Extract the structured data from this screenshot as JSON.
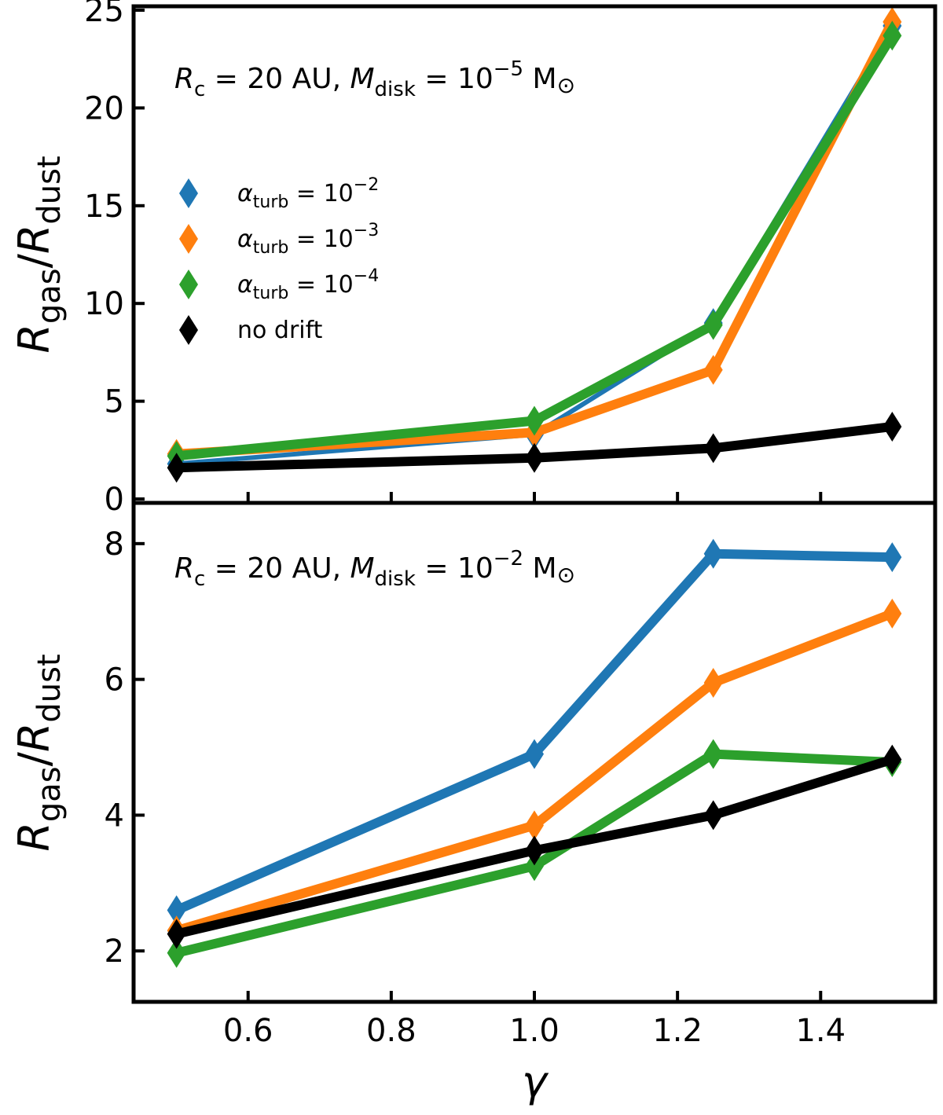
{
  "chart_data": [
    {
      "type": "line",
      "panel": "top",
      "annotation": {
        "r_sym": "R",
        "r_sub": "c",
        "r_rest": " = 20 AU, ",
        "m_sym": "M",
        "m_sub": "disk",
        "m_eq": " = 10",
        "m_exp": "−5",
        "m_unit": " M",
        "sun": "⊙"
      },
      "ylabel": {
        "r1": "R",
        "sub1": "gas",
        "slash": "/",
        "r2": "R",
        "sub2": "dust"
      },
      "x": [
        0.5,
        1.0,
        1.25,
        1.5
      ],
      "xlim": [
        0.44,
        1.56
      ],
      "ylim": [
        -0.2,
        25.2
      ],
      "yticks": [
        "0",
        "5",
        "10",
        "15",
        "20",
        "25"
      ],
      "ytick_values": [
        0,
        5,
        10,
        15,
        20,
        25
      ],
      "series": [
        {
          "name": "α_turb = 10^-2",
          "color": "#1f77b4",
          "values": [
            1.8,
            3.3,
            9.0,
            24.2
          ]
        },
        {
          "name": "α_turb = 10^-3",
          "color": "#ff7f0e",
          "values": [
            2.3,
            3.4,
            6.6,
            24.4
          ]
        },
        {
          "name": "α_turb = 10^-4",
          "color": "#2ca02c",
          "values": [
            2.2,
            4.0,
            8.9,
            23.7
          ]
        },
        {
          "name": "no drift",
          "color": "#000000",
          "values": [
            1.6,
            2.1,
            2.6,
            3.7
          ]
        }
      ]
    },
    {
      "type": "line",
      "panel": "bottom",
      "annotation": {
        "r_sym": "R",
        "r_sub": "c",
        "r_rest": " = 20 AU, ",
        "m_sym": "M",
        "m_sub": "disk",
        "m_eq": " = 10",
        "m_exp": "−2",
        "m_unit": " M",
        "sun": "⊙"
      },
      "ylabel": {
        "r1": "R",
        "sub1": "gas",
        "slash": "/",
        "r2": "R",
        "sub2": "dust"
      },
      "x": [
        0.5,
        1.0,
        1.25,
        1.5
      ],
      "xlim": [
        0.44,
        1.56
      ],
      "ylim": [
        1.25,
        8.6
      ],
      "xlabel": "γ",
      "xticks": [
        "0.6",
        "0.8",
        "1.0",
        "1.2",
        "1.4"
      ],
      "xtick_values": [
        0.6,
        0.8,
        1.0,
        1.2,
        1.4
      ],
      "yticks": [
        "2",
        "4",
        "6",
        "8"
      ],
      "ytick_values": [
        2,
        4,
        6,
        8
      ],
      "series": [
        {
          "name": "α_turb = 10^-2",
          "color": "#1f77b4",
          "values": [
            2.6,
            4.9,
            7.85,
            7.8
          ]
        },
        {
          "name": "α_turb = 10^-3",
          "color": "#ff7f0e",
          "values": [
            2.3,
            3.85,
            5.95,
            6.97
          ]
        },
        {
          "name": "α_turb = 10^-4",
          "color": "#2ca02c",
          "values": [
            1.97,
            3.25,
            4.9,
            4.78
          ]
        },
        {
          "name": "no drift",
          "color": "#000000",
          "values": [
            2.25,
            3.48,
            4.0,
            4.82
          ]
        }
      ]
    }
  ],
  "legend": {
    "items": [
      {
        "sym": "α",
        "sub": "turb",
        "eq": " = 10",
        "exp": "−2",
        "color": "#1f77b4"
      },
      {
        "sym": "α",
        "sub": "turb",
        "eq": " = 10",
        "exp": "−3",
        "color": "#ff7f0e"
      },
      {
        "sym": "α",
        "sub": "turb",
        "eq": " = 10",
        "exp": "−4",
        "color": "#2ca02c"
      },
      {
        "text": "no drift",
        "color": "#000000"
      }
    ]
  }
}
